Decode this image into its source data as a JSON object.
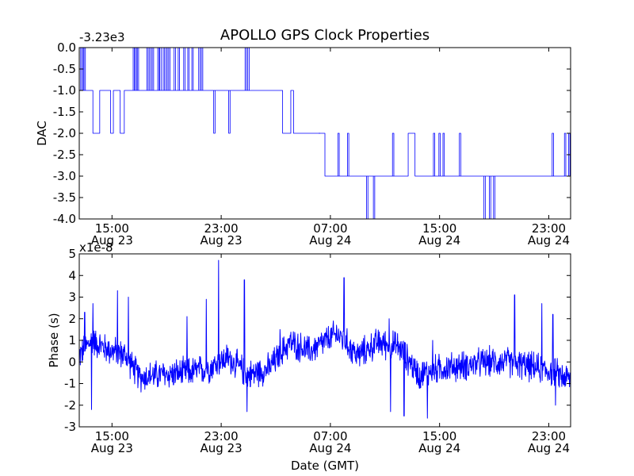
{
  "chart_data": {
    "title": "APOLLO GPS Clock Properties",
    "x_ticks": [
      {
        "time": "15:00",
        "date": "Aug 23"
      },
      {
        "time": "23:00",
        "date": "Aug 23"
      },
      {
        "time": "07:00",
        "date": "Aug 24"
      },
      {
        "time": "15:00",
        "date": "Aug 24"
      },
      {
        "time": "23:00",
        "date": "Aug 24"
      }
    ],
    "x_range_hours": [
      12.6,
      48.6
    ],
    "xlabel": "Date (GMT)",
    "series_color": "#0000ff",
    "panels": [
      {
        "type": "line",
        "ylabel": "DAC",
        "offset_text": "-3.23e3",
        "ylim": [
          -4.0,
          0.0
        ],
        "y_ticks": [
          0.0,
          -0.5,
          -1.0,
          -1.5,
          -2.0,
          -2.5,
          -3.0,
          -3.5,
          -4.0
        ],
        "y_tick_labels": [
          "0.0",
          "-0.5",
          "-1.0",
          "-1.5",
          "-2.0",
          "-2.5",
          "-3.0",
          "-3.5",
          "-4.0"
        ],
        "levels": [
          {
            "t_start": 12.6,
            "t_end": 13.6,
            "value": -1.0
          },
          {
            "t_start": 13.6,
            "t_end": 14.1,
            "value": -2.0
          },
          {
            "t_start": 14.1,
            "t_end": 14.9,
            "value": -1.0
          },
          {
            "t_start": 14.9,
            "t_end": 15.1,
            "value": -2.0
          },
          {
            "t_start": 15.1,
            "t_end": 15.6,
            "value": -1.0
          },
          {
            "t_start": 15.6,
            "t_end": 15.9,
            "value": -2.0
          },
          {
            "t_start": 15.9,
            "t_end": 27.5,
            "value": -1.0
          },
          {
            "t_start": 27.5,
            "t_end": 28.1,
            "value": -2.0
          },
          {
            "t_start": 28.1,
            "t_end": 28.3,
            "value": -1.0
          },
          {
            "t_start": 28.3,
            "t_end": 30.6,
            "value": -2.0
          },
          {
            "t_start": 30.6,
            "t_end": 31.3,
            "value": -3.0
          },
          {
            "t_start": 31.3,
            "t_end": 32.1,
            "value": -3.0
          },
          {
            "t_start": 32.1,
            "t_end": 36.7,
            "value": -3.0
          },
          {
            "t_start": 36.7,
            "t_end": 37.2,
            "value": -2.0
          },
          {
            "t_start": 37.2,
            "t_end": 48.6,
            "value": -3.0
          }
        ],
        "spikes": [
          {
            "t": 12.75,
            "value": 0.0
          },
          {
            "t": 12.85,
            "value": 0.0
          },
          {
            "t": 13.0,
            "value": 0.0
          },
          {
            "t": 16.6,
            "value": 0.0
          },
          {
            "t": 16.75,
            "value": 0.0
          },
          {
            "t": 16.9,
            "value": 0.0
          },
          {
            "t": 17.6,
            "value": 0.0
          },
          {
            "t": 17.8,
            "value": 0.0
          },
          {
            "t": 18.0,
            "value": 0.0
          },
          {
            "t": 18.4,
            "value": 0.0
          },
          {
            "t": 18.55,
            "value": 0.0
          },
          {
            "t": 18.8,
            "value": 0.0
          },
          {
            "t": 19.0,
            "value": 0.0
          },
          {
            "t": 19.2,
            "value": 0.0
          },
          {
            "t": 19.6,
            "value": 0.0
          },
          {
            "t": 19.9,
            "value": 0.0
          },
          {
            "t": 20.3,
            "value": 0.0
          },
          {
            "t": 20.6,
            "value": 0.0
          },
          {
            "t": 20.9,
            "value": 0.0
          },
          {
            "t": 21.4,
            "value": 0.0
          },
          {
            "t": 21.6,
            "value": 0.0
          },
          {
            "t": 22.5,
            "value": -2.0
          },
          {
            "t": 23.6,
            "value": -2.0
          },
          {
            "t": 24.8,
            "value": 0.0
          },
          {
            "t": 25.0,
            "value": 0.0
          },
          {
            "t": 30.2,
            "value": -2.0
          },
          {
            "t": 31.6,
            "value": -2.0
          },
          {
            "t": 32.3,
            "value": -2.0
          },
          {
            "t": 33.7,
            "value": -4.0
          },
          {
            "t": 34.2,
            "value": -4.0
          },
          {
            "t": 35.6,
            "value": -2.0
          },
          {
            "t": 38.6,
            "value": -2.0
          },
          {
            "t": 39.0,
            "value": -2.0
          },
          {
            "t": 39.3,
            "value": -2.0
          },
          {
            "t": 40.5,
            "value": -2.0
          },
          {
            "t": 42.3,
            "value": -4.0
          },
          {
            "t": 42.7,
            "value": -4.0
          },
          {
            "t": 43.0,
            "value": -4.0
          },
          {
            "t": 47.3,
            "value": -2.0
          },
          {
            "t": 48.2,
            "value": -2.0
          },
          {
            "t": 48.5,
            "value": -2.0
          }
        ]
      },
      {
        "type": "line",
        "ylabel": "Phase (s)",
        "offset_text": "x1e-8",
        "ylim": [
          -3,
          5
        ],
        "y_ticks": [
          5,
          4,
          3,
          2,
          1,
          0,
          -1,
          -2,
          -3
        ],
        "y_tick_labels": [
          "5",
          "4",
          "3",
          "2",
          "1",
          "0",
          "-1",
          "-2",
          "-3"
        ],
        "envelope": [
          {
            "t": 12.6,
            "center": 0.3
          },
          {
            "t": 13.5,
            "center": 1.0
          },
          {
            "t": 14.6,
            "center": 0.6
          },
          {
            "t": 16.0,
            "center": 0.3
          },
          {
            "t": 17.0,
            "center": -0.7
          },
          {
            "t": 18.5,
            "center": -0.6
          },
          {
            "t": 20.5,
            "center": -0.5
          },
          {
            "t": 22.0,
            "center": -0.3
          },
          {
            "t": 23.5,
            "center": 0.2
          },
          {
            "t": 25.0,
            "center": -0.6
          },
          {
            "t": 26.5,
            "center": -0.3
          },
          {
            "t": 28.0,
            "center": 0.9
          },
          {
            "t": 29.5,
            "center": 0.5
          },
          {
            "t": 31.5,
            "center": 1.3
          },
          {
            "t": 33.0,
            "center": 0.3
          },
          {
            "t": 34.5,
            "center": 0.9
          },
          {
            "t": 36.0,
            "center": 0.7
          },
          {
            "t": 37.5,
            "center": -0.6
          },
          {
            "t": 39.0,
            "center": -0.3
          },
          {
            "t": 40.5,
            "center": -0.2
          },
          {
            "t": 42.5,
            "center": 0.0
          },
          {
            "t": 44.0,
            "center": 0.0
          },
          {
            "t": 45.5,
            "center": -0.2
          },
          {
            "t": 47.0,
            "center": -0.4
          },
          {
            "t": 48.6,
            "center": -0.8
          }
        ],
        "noise_amplitude": 0.55,
        "peaks": [
          {
            "t": 13.0,
            "value": 2.3
          },
          {
            "t": 13.6,
            "value": 2.7
          },
          {
            "t": 15.4,
            "value": 3.3
          },
          {
            "t": 16.2,
            "value": 3.0
          },
          {
            "t": 20.5,
            "value": 2.1
          },
          {
            "t": 21.9,
            "value": 2.9
          },
          {
            "t": 22.8,
            "value": 4.7
          },
          {
            "t": 24.7,
            "value": 3.8
          },
          {
            "t": 27.3,
            "value": 1.5
          },
          {
            "t": 32.0,
            "value": 3.9
          },
          {
            "t": 35.3,
            "value": 2.0
          },
          {
            "t": 38.5,
            "value": 1.0
          },
          {
            "t": 44.5,
            "value": 3.1
          },
          {
            "t": 46.5,
            "value": 2.7
          },
          {
            "t": 47.3,
            "value": 2.2
          },
          {
            "t": 24.9,
            "value": -2.3
          },
          {
            "t": 13.5,
            "value": -2.2
          },
          {
            "t": 35.4,
            "value": -2.3
          },
          {
            "t": 36.4,
            "value": -2.5
          },
          {
            "t": 38.1,
            "value": -2.6
          },
          {
            "t": 47.5,
            "value": -2.0
          }
        ]
      }
    ]
  }
}
